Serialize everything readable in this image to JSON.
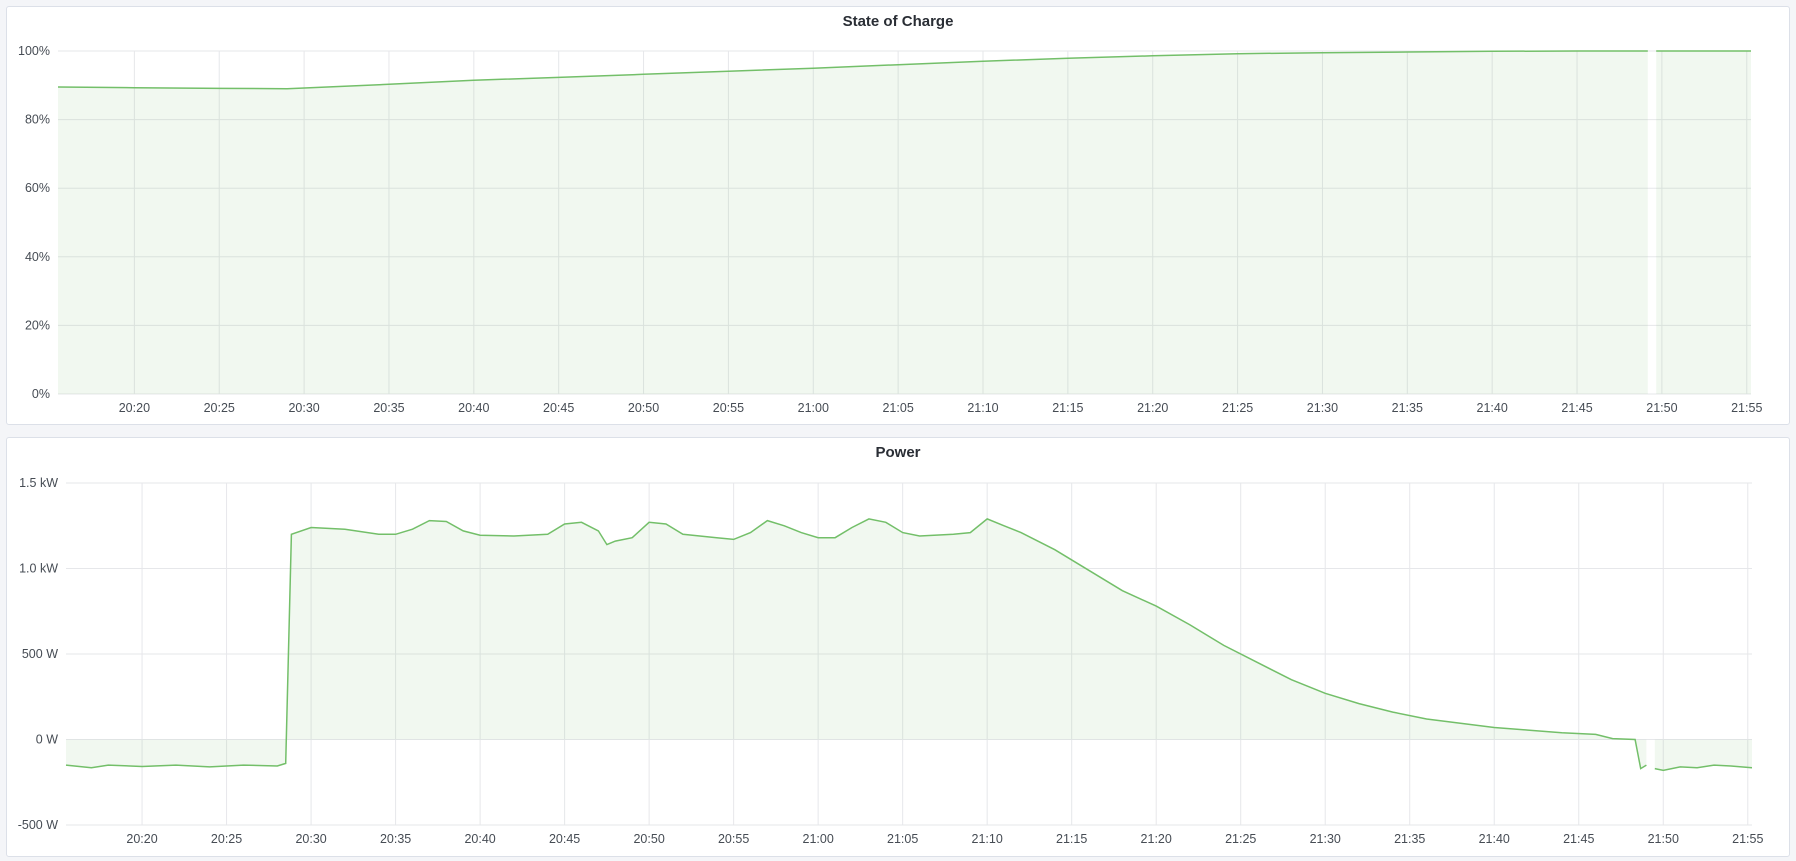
{
  "chart_data": [
    {
      "type": "area",
      "title": "State of Charge",
      "unit": "%",
      "ylim": [
        0,
        100
      ],
      "yticks": [
        "0%",
        "20%",
        "40%",
        "60%",
        "80%",
        "100%"
      ],
      "ytick_values": [
        0,
        20,
        40,
        60,
        80,
        100
      ],
      "xlim": [
        "20:15:30",
        "21:55:15"
      ],
      "xticks": [
        "20:20",
        "20:25",
        "20:30",
        "20:35",
        "20:40",
        "20:45",
        "20:50",
        "20:55",
        "21:00",
        "21:05",
        "21:10",
        "21:15",
        "21:20",
        "21:25",
        "21:30",
        "21:35",
        "21:40",
        "21:45",
        "21:50",
        "21:55"
      ],
      "grid": true,
      "color": "#73bf69",
      "series": [
        {
          "segments": [
            [
              [
                "20:15:30",
                89.5
              ],
              [
                "20:20",
                89.3
              ],
              [
                "20:25",
                89.1
              ],
              [
                "20:29",
                89.0
              ],
              [
                "20:35",
                90.3
              ],
              [
                "20:40",
                91.5
              ],
              [
                "20:45",
                92.3
              ],
              [
                "20:50",
                93.2
              ],
              [
                "20:55",
                94.1
              ],
              [
                "21:00",
                95.0
              ],
              [
                "21:05",
                96.0
              ],
              [
                "21:10",
                97.0
              ],
              [
                "21:15",
                97.9
              ],
              [
                "21:20",
                98.6
              ],
              [
                "21:25",
                99.2
              ],
              [
                "21:30",
                99.5
              ],
              [
                "21:35",
                99.7
              ],
              [
                "21:40",
                99.9
              ],
              [
                "21:45",
                100
              ],
              [
                "21:49:10",
                100
              ]
            ],
            [
              [
                "21:49:40",
                100
              ],
              [
                "21:55:15",
                100
              ]
            ]
          ]
        }
      ]
    },
    {
      "type": "area",
      "title": "Power",
      "unit": "W",
      "ylim": [
        -500,
        1500
      ],
      "yticks": [
        "-500 W",
        "0 W",
        "500 W",
        "1.0 kW",
        "1.5 kW"
      ],
      "ytick_values": [
        -500,
        0,
        500,
        1000,
        1500
      ],
      "xlim": [
        "20:15:30",
        "21:55:15"
      ],
      "xticks": [
        "20:20",
        "20:25",
        "20:30",
        "20:35",
        "20:40",
        "20:45",
        "20:50",
        "20:55",
        "21:00",
        "21:05",
        "21:10",
        "21:15",
        "21:20",
        "21:25",
        "21:30",
        "21:35",
        "21:40",
        "21:45",
        "21:50",
        "21:55"
      ],
      "grid": true,
      "color": "#73bf69",
      "series": [
        {
          "segments": [
            [
              [
                "20:15:30",
                -150
              ],
              [
                "20:17",
                -165
              ],
              [
                "20:18",
                -150
              ],
              [
                "20:20",
                -158
              ],
              [
                "20:22",
                -150
              ],
              [
                "20:24",
                -160
              ],
              [
                "20:26",
                -150
              ],
              [
                "20:28",
                -155
              ],
              [
                "20:28:30",
                -140
              ],
              [
                "20:28:50",
                1200
              ],
              [
                "20:30",
                1240
              ],
              [
                "20:32",
                1230
              ],
              [
                "20:34",
                1200
              ],
              [
                "20:35",
                1200
              ],
              [
                "20:36",
                1230
              ],
              [
                "20:37",
                1280
              ],
              [
                "20:38",
                1275
              ],
              [
                "20:39",
                1220
              ],
              [
                "20:40",
                1195
              ],
              [
                "20:42",
                1190
              ],
              [
                "20:44",
                1200
              ],
              [
                "20:45",
                1260
              ],
              [
                "20:46",
                1270
              ],
              [
                "20:47",
                1220
              ],
              [
                "20:47:30",
                1140
              ],
              [
                "20:48",
                1160
              ],
              [
                "20:49",
                1180
              ],
              [
                "20:50",
                1270
              ],
              [
                "20:51",
                1260
              ],
              [
                "20:52",
                1200
              ],
              [
                "20:54",
                1180
              ],
              [
                "20:55",
                1170
              ],
              [
                "20:56",
                1210
              ],
              [
                "20:57",
                1280
              ],
              [
                "20:58",
                1250
              ],
              [
                "20:59",
                1210
              ],
              [
                "21:00",
                1180
              ],
              [
                "21:01",
                1180
              ],
              [
                "21:02",
                1240
              ],
              [
                "21:03",
                1290
              ],
              [
                "21:04",
                1270
              ],
              [
                "21:05",
                1210
              ],
              [
                "21:06",
                1190
              ],
              [
                "21:08",
                1200
              ],
              [
                "21:09",
                1210
              ],
              [
                "21:10",
                1290
              ],
              [
                "21:11",
                1250
              ],
              [
                "21:12",
                1210
              ],
              [
                "21:14",
                1110
              ],
              [
                "21:16",
                990
              ],
              [
                "21:18",
                870
              ],
              [
                "21:20",
                780
              ],
              [
                "21:22",
                670
              ],
              [
                "21:24",
                550
              ],
              [
                "21:26",
                450
              ],
              [
                "21:28",
                350
              ],
              [
                "21:30",
                270
              ],
              [
                "21:32",
                210
              ],
              [
                "21:34",
                160
              ],
              [
                "21:36",
                120
              ],
              [
                "21:38",
                95
              ],
              [
                "21:40",
                70
              ],
              [
                "21:42",
                55
              ],
              [
                "21:44",
                40
              ],
              [
                "21:46",
                30
              ],
              [
                "21:47",
                5
              ],
              [
                "21:48:20",
                0
              ],
              [
                "21:48:40",
                -170
              ],
              [
                "21:49",
                -150
              ]
            ],
            [
              [
                "21:49:30",
                -170
              ],
              [
                "21:50",
                -180
              ],
              [
                "21:51",
                -160
              ],
              [
                "21:52",
                -165
              ],
              [
                "21:53",
                -150
              ],
              [
                "21:54",
                -155
              ],
              [
                "21:55:15",
                -165
              ]
            ]
          ]
        }
      ]
    }
  ]
}
